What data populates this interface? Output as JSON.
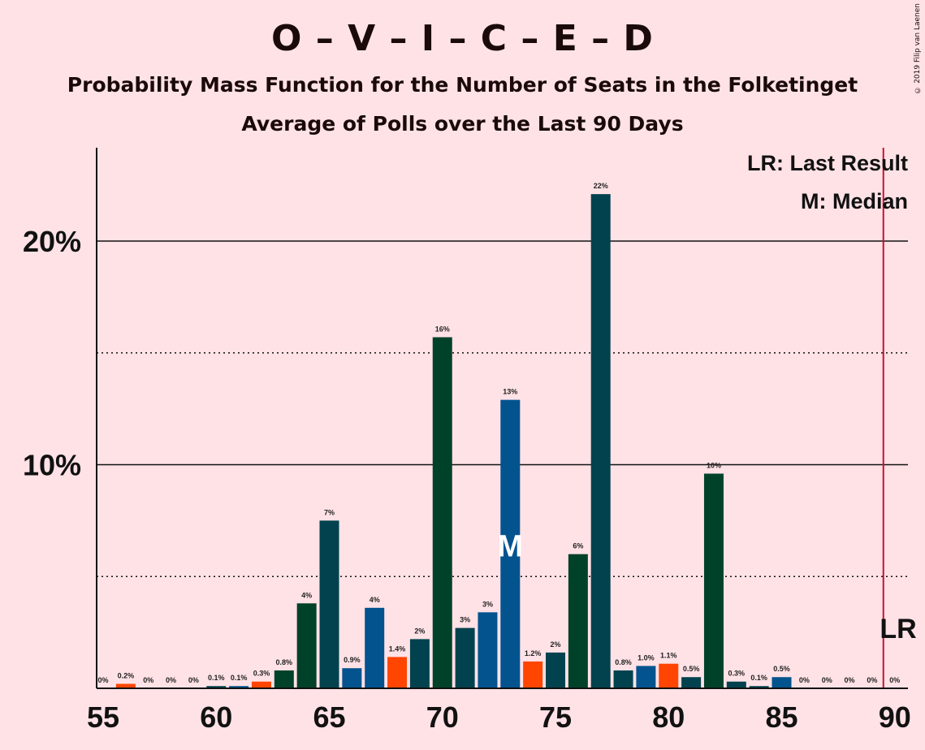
{
  "title": "O – V – I – C – E – D",
  "subtitle": "Probability Mass Function for the Number of Seats in the Folketinget",
  "subtitle2": "Average of Polls over the Last 90 Days",
  "copyright": "© 2019 Filip van Laenen",
  "legend": {
    "last_result": "LR: Last Result",
    "median": "M: Median"
  },
  "markers": {
    "median_label": "M",
    "last_result_label": "LR",
    "median_seat": 73,
    "last_result_seat": 90
  },
  "colors": {
    "background": "#FFE2E6",
    "dark_green": "#00412A",
    "teal": "#02424F",
    "blue": "#03538F",
    "orange": "#FF4500",
    "lr_line": "#C8102E"
  },
  "chart_data": {
    "type": "bar",
    "xlabel": "",
    "ylabel": "",
    "xlim": [
      55,
      90
    ],
    "ylim": [
      0,
      24
    ],
    "x_ticks": [
      "55",
      "60",
      "65",
      "70",
      "75",
      "80",
      "85",
      "90"
    ],
    "y_ticks": [
      "10%",
      "20%"
    ],
    "grid": "solid at 10% and 20%, dotted at 5% and 15%",
    "legend_position": "top-right",
    "bars": [
      {
        "seat": 55,
        "value": 0.0,
        "label": "0%",
        "color": "teal"
      },
      {
        "seat": 56,
        "value": 0.2,
        "label": "0.2%",
        "color": "orange"
      },
      {
        "seat": 57,
        "value": 0.0,
        "label": "0%",
        "color": "dark_green"
      },
      {
        "seat": 58,
        "value": 0.0,
        "label": "0%",
        "color": "teal"
      },
      {
        "seat": 59,
        "value": 0.0,
        "label": "0%",
        "color": "dark_green"
      },
      {
        "seat": 60,
        "value": 0.1,
        "label": "0.1%",
        "color": "teal"
      },
      {
        "seat": 61,
        "value": 0.1,
        "label": "0.1%",
        "color": "blue"
      },
      {
        "seat": 62,
        "value": 0.3,
        "label": "0.3%",
        "color": "orange"
      },
      {
        "seat": 63,
        "value": 0.8,
        "label": "0.8%",
        "color": "dark_green"
      },
      {
        "seat": 64,
        "value": 3.8,
        "label": "4%",
        "color": "dark_green"
      },
      {
        "seat": 65,
        "value": 7.5,
        "label": "7%",
        "color": "teal"
      },
      {
        "seat": 66,
        "value": 0.9,
        "label": "0.9%",
        "color": "blue"
      },
      {
        "seat": 67,
        "value": 3.6,
        "label": "4%",
        "color": "blue"
      },
      {
        "seat": 68,
        "value": 1.4,
        "label": "1.4%",
        "color": "orange"
      },
      {
        "seat": 69,
        "value": 2.2,
        "label": "2%",
        "color": "teal"
      },
      {
        "seat": 70,
        "value": 15.7,
        "label": "16%",
        "color": "dark_green"
      },
      {
        "seat": 71,
        "value": 2.7,
        "label": "3%",
        "color": "teal"
      },
      {
        "seat": 72,
        "value": 3.4,
        "label": "3%",
        "color": "blue"
      },
      {
        "seat": 73,
        "value": 12.9,
        "label": "13%",
        "color": "blue"
      },
      {
        "seat": 74,
        "value": 1.2,
        "label": "1.2%",
        "color": "orange"
      },
      {
        "seat": 75,
        "value": 1.6,
        "label": "2%",
        "color": "teal"
      },
      {
        "seat": 76,
        "value": 6.0,
        "label": "6%",
        "color": "dark_green"
      },
      {
        "seat": 77,
        "value": 22.1,
        "label": "22%",
        "color": "teal"
      },
      {
        "seat": 78,
        "value": 0.8,
        "label": "0.8%",
        "color": "teal"
      },
      {
        "seat": 79,
        "value": 1.0,
        "label": "1.0%",
        "color": "blue"
      },
      {
        "seat": 80,
        "value": 1.1,
        "label": "1.1%",
        "color": "orange"
      },
      {
        "seat": 81,
        "value": 0.5,
        "label": "0.5%",
        "color": "teal"
      },
      {
        "seat": 82,
        "value": 9.6,
        "label": "10%",
        "color": "dark_green"
      },
      {
        "seat": 83,
        "value": 0.3,
        "label": "0.3%",
        "color": "teal"
      },
      {
        "seat": 84,
        "value": 0.1,
        "label": "0.1%",
        "color": "teal"
      },
      {
        "seat": 85,
        "value": 0.5,
        "label": "0.5%",
        "color": "blue"
      },
      {
        "seat": 86,
        "value": 0.0,
        "label": "0%",
        "color": "teal"
      },
      {
        "seat": 87,
        "value": 0.0,
        "label": "0%",
        "color": "teal"
      },
      {
        "seat": 88,
        "value": 0.0,
        "label": "0%",
        "color": "teal"
      },
      {
        "seat": 89,
        "value": 0.0,
        "label": "0%",
        "color": "teal"
      },
      {
        "seat": 90,
        "value": 0.0,
        "label": "0%",
        "color": "teal"
      }
    ]
  }
}
